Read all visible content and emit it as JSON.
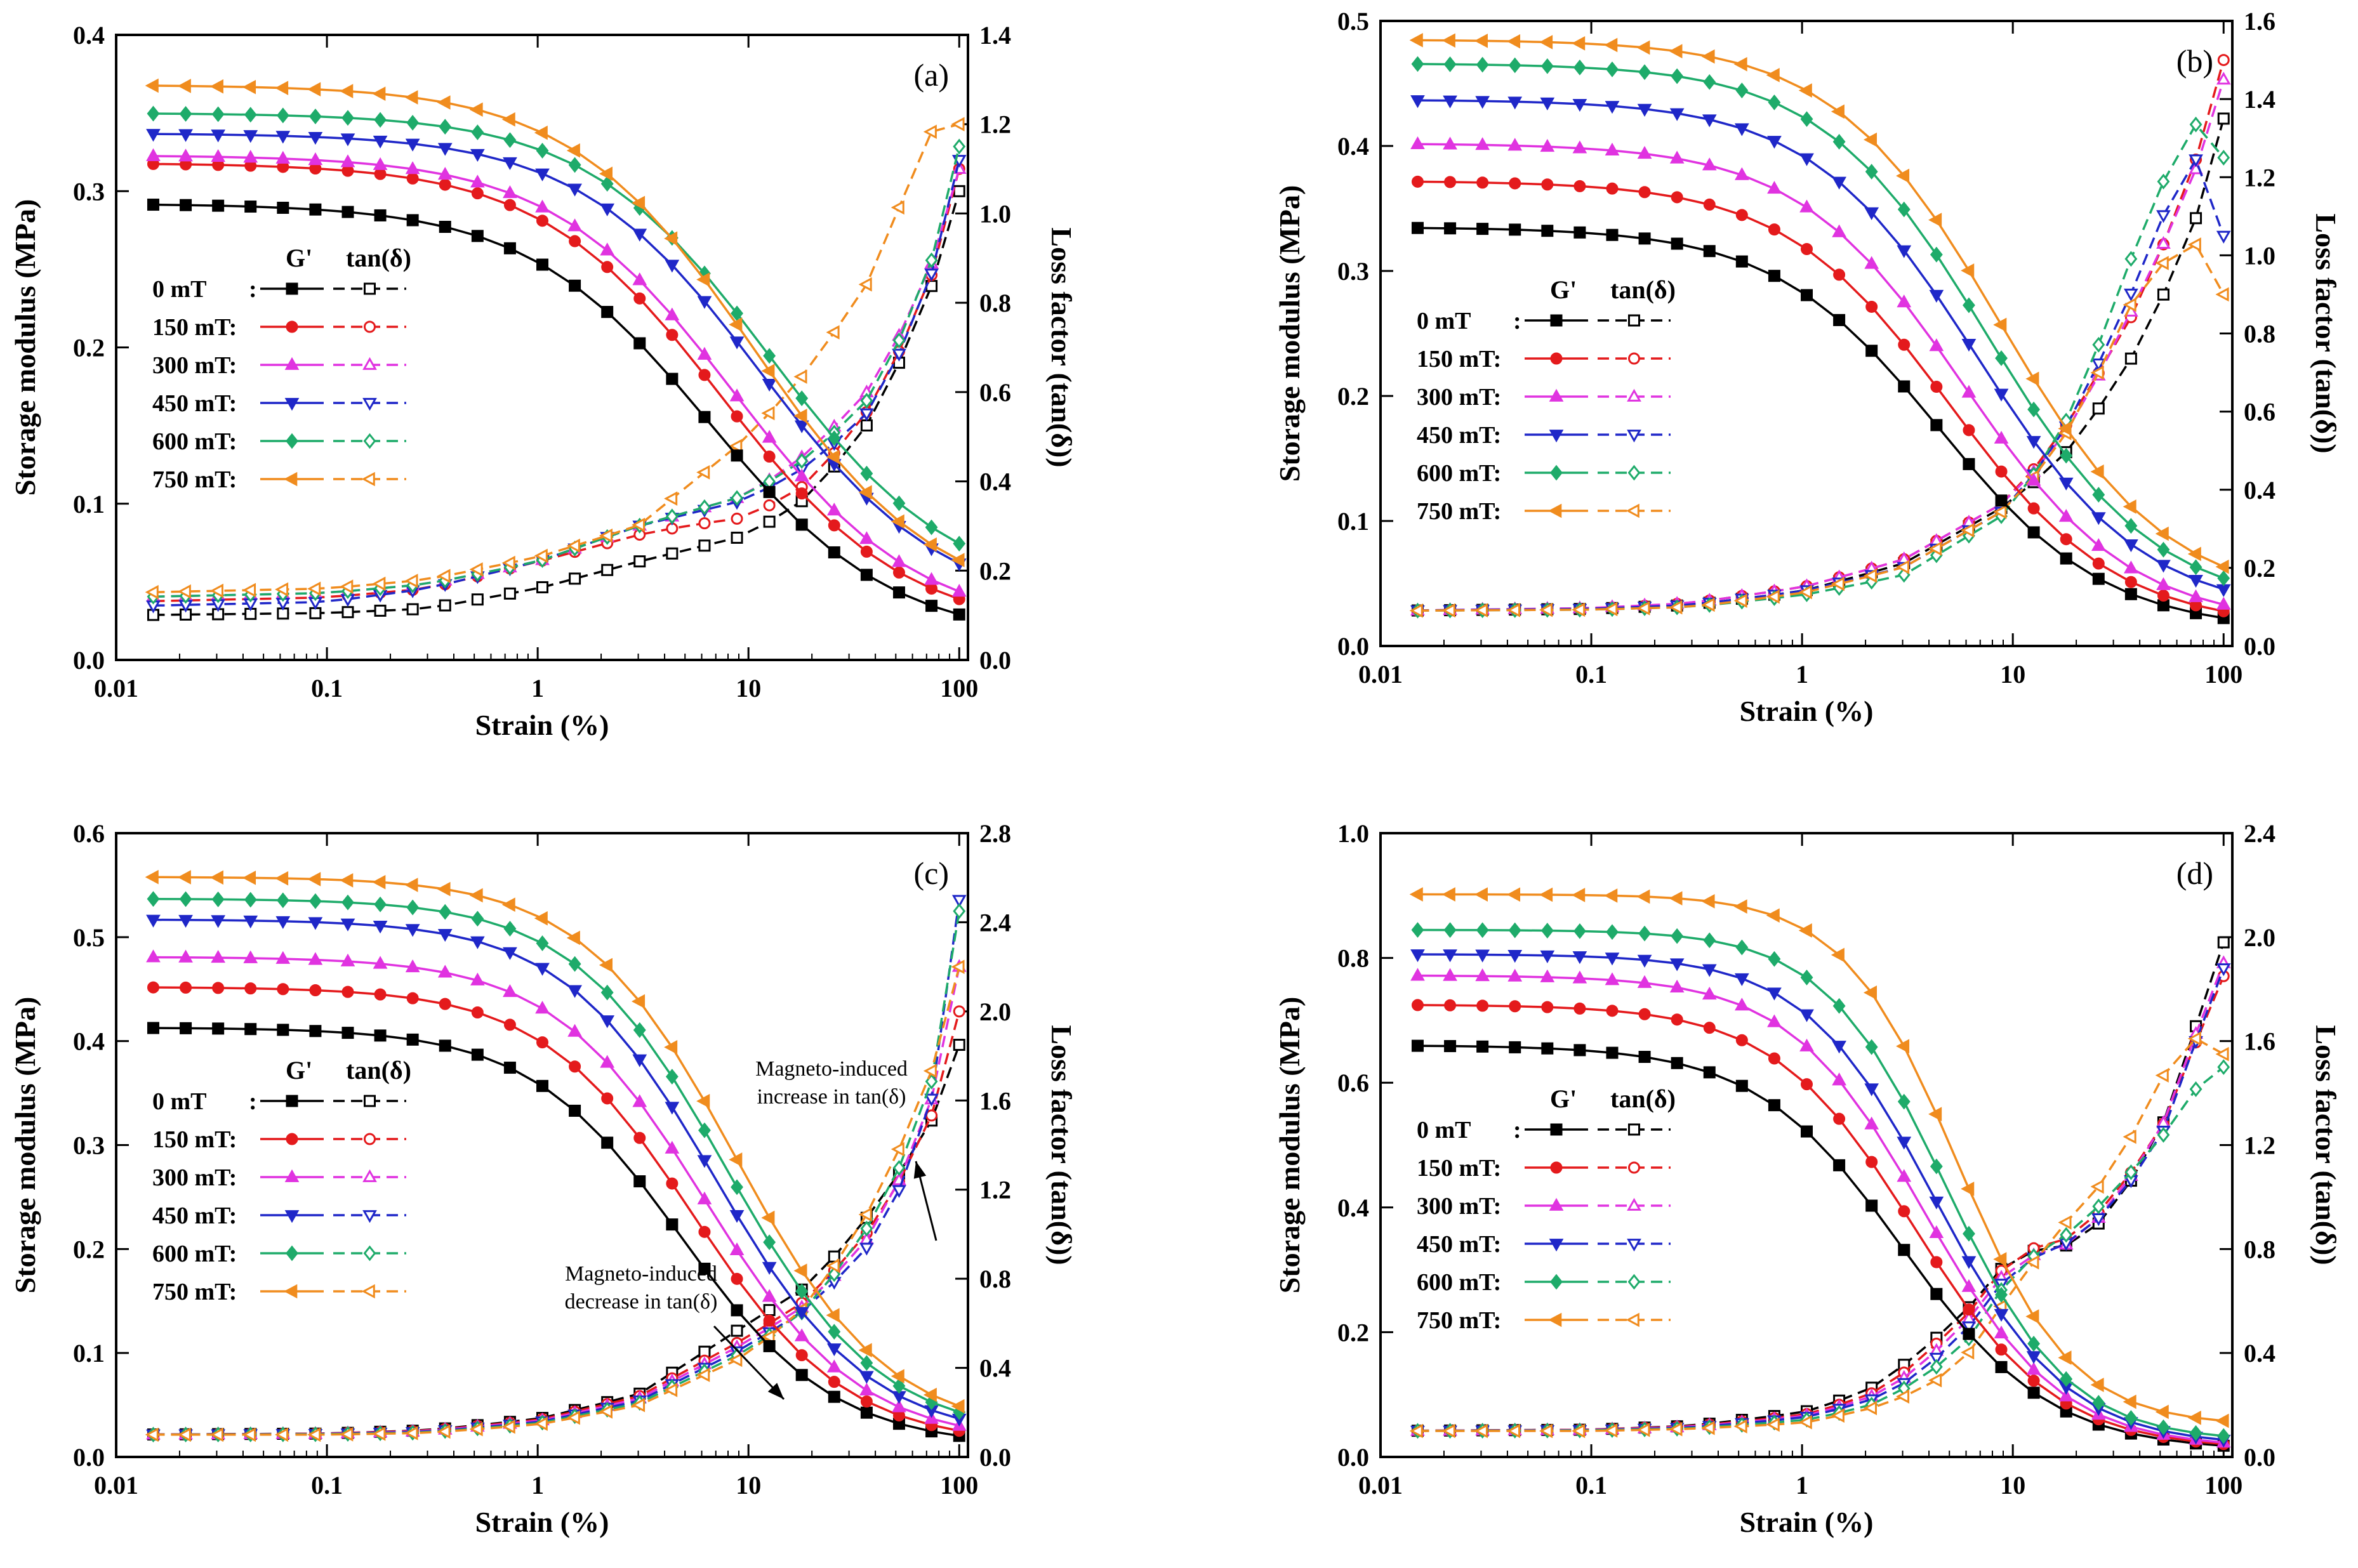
{
  "colors": {
    "0 mT": "#000000",
    "150 mT": "#e41a1c",
    "300 mT": "#e033e0",
    "450 mT": "#1f27c8",
    "600 mT": "#1eab6a",
    "750 mT": "#f08c1e"
  },
  "legend": {
    "header_gprime": "G'",
    "header_tan": "tan(δ)",
    "labels": [
      "0 mT",
      "150 mT:",
      "300 mT:",
      "450 mT:",
      "600 mT:",
      "750 mT:"
    ],
    "first_colon": ":"
  },
  "chart_data": [
    {
      "type": "line",
      "panel": "(a)",
      "xlabel": "Strain (%)",
      "ylabel": "Storage modulus  (MPa)",
      "y2label": "Loss factor (tan(δ))",
      "xscale": "log",
      "xlim": [
        0.01,
        110
      ],
      "ylim": [
        0,
        0.4
      ],
      "y2lim": [
        0,
        1.4
      ],
      "xticks": [
        "0.01",
        "0.1",
        "1",
        "10",
        "100"
      ],
      "yticks": [
        "0.0",
        "0.1",
        "0.2",
        "0.3",
        "0.4"
      ],
      "y2ticks": [
        "0.0",
        "0.2",
        "0.4",
        "0.6",
        "0.8",
        "1.0",
        "1.2",
        "1.4"
      ],
      "gprime": [
        {
          "name": "0 mT",
          "plateau": 0.292,
          "final": 0.012,
          "mid": 6.5,
          "slope": 1.0
        },
        {
          "name": "150 mT",
          "plateau": 0.318,
          "final": 0.018,
          "mid": 7.5,
          "slope": 1.0
        },
        {
          "name": "300 mT",
          "plateau": 0.323,
          "final": 0.02,
          "mid": 8.5,
          "slope": 1.0
        },
        {
          "name": "450 mT",
          "plateau": 0.337,
          "final": 0.03,
          "mid": 11.5,
          "slope": 1.0
        },
        {
          "name": "600 mT",
          "plateau": 0.35,
          "final": 0.04,
          "mid": 12.5,
          "slope": 1.0
        },
        {
          "name": "750 mT",
          "plateau": 0.368,
          "final": 0.032,
          "mid": 10.5,
          "slope": 1.0
        }
      ],
      "tan": [
        {
          "name": "0 mT",
          "x": [
            0.01,
            0.1,
            0.3,
            1,
            3,
            10,
            20,
            40,
            70,
            100
          ],
          "y": [
            0.1,
            0.105,
            0.115,
            0.16,
            0.22,
            0.28,
            0.37,
            0.55,
            0.8,
            1.05
          ]
        },
        {
          "name": "150 mT",
          "x": [
            0.01,
            0.1,
            0.3,
            1,
            3,
            5,
            10,
            20,
            40,
            70,
            100
          ],
          "y": [
            0.13,
            0.14,
            0.16,
            0.22,
            0.28,
            0.3,
            0.32,
            0.4,
            0.58,
            0.82,
            1.1
          ]
        },
        {
          "name": "300 mT",
          "x": [
            0.01,
            0.1,
            0.3,
            1,
            3,
            10,
            20,
            40,
            70,
            100
          ],
          "y": [
            0.14,
            0.15,
            0.17,
            0.22,
            0.3,
            0.37,
            0.47,
            0.62,
            0.85,
            1.1
          ]
        },
        {
          "name": "450 mT",
          "x": [
            0.01,
            0.1,
            0.3,
            1,
            3,
            10,
            20,
            40,
            70,
            100
          ],
          "y": [
            0.12,
            0.13,
            0.16,
            0.22,
            0.3,
            0.36,
            0.44,
            0.57,
            0.82,
            1.12
          ]
        },
        {
          "name": "600 mT",
          "x": [
            0.01,
            0.1,
            0.3,
            1,
            3,
            10,
            20,
            40,
            70,
            100
          ],
          "y": [
            0.14,
            0.15,
            0.17,
            0.22,
            0.3,
            0.37,
            0.46,
            0.6,
            0.85,
            1.15
          ]
        },
        {
          "name": "750 mT",
          "x": [
            0.01,
            0.1,
            0.3,
            1,
            3,
            10,
            20,
            40,
            70,
            100
          ],
          "y": [
            0.15,
            0.16,
            0.18,
            0.23,
            0.3,
            0.5,
            0.66,
            0.87,
            1.18,
            1.2
          ]
        }
      ],
      "annotations": []
    },
    {
      "type": "line",
      "panel": "(b)",
      "xlabel": "Strain (%)",
      "ylabel": "Storage modulus  (MPa)",
      "y2label": "Loss factor (tan(δ))",
      "xscale": "log",
      "xlim": [
        0.01,
        110
      ],
      "ylim": [
        0,
        0.5
      ],
      "y2lim": [
        0,
        1.6
      ],
      "xticks": [
        "0.01",
        "0.1",
        "1",
        "10",
        "100"
      ],
      "yticks": [
        "0.0",
        "0.1",
        "0.2",
        "0.3",
        "0.4",
        "0.5"
      ],
      "y2ticks": [
        "0.0",
        "0.2",
        "0.4",
        "0.6",
        "0.8",
        "1.0",
        "1.2",
        "1.4",
        "1.6"
      ],
      "gprime": [
        {
          "name": "0 mT",
          "plateau": 0.335,
          "final": 0.012,
          "mid": 4.5,
          "slope": 1.1
        },
        {
          "name": "150 mT",
          "plateau": 0.372,
          "final": 0.015,
          "mid": 5.0,
          "slope": 1.1
        },
        {
          "name": "300 mT",
          "plateau": 0.402,
          "final": 0.017,
          "mid": 5.8,
          "slope": 1.1
        },
        {
          "name": "450 mT",
          "plateau": 0.437,
          "final": 0.025,
          "mid": 6.8,
          "slope": 1.1
        },
        {
          "name": "600 mT",
          "plateau": 0.466,
          "final": 0.03,
          "mid": 7.6,
          "slope": 1.1
        },
        {
          "name": "750 mT",
          "plateau": 0.485,
          "final": 0.035,
          "mid": 8.6,
          "slope": 1.1
        }
      ],
      "tan": [
        {
          "name": "0 mT",
          "x": [
            0.01,
            0.1,
            0.3,
            1,
            3,
            10,
            20,
            40,
            70,
            100
          ],
          "y": [
            0.09,
            0.095,
            0.105,
            0.14,
            0.21,
            0.37,
            0.52,
            0.77,
            1.05,
            1.35
          ]
        },
        {
          "name": "150 mT",
          "x": [
            0.01,
            0.1,
            0.3,
            1,
            3,
            10,
            20,
            40,
            70,
            100
          ],
          "y": [
            0.09,
            0.095,
            0.11,
            0.15,
            0.22,
            0.38,
            0.6,
            0.88,
            1.2,
            1.5
          ]
        },
        {
          "name": "300 mT",
          "x": [
            0.01,
            0.1,
            0.3,
            1,
            3,
            10,
            20,
            40,
            70,
            100
          ],
          "y": [
            0.09,
            0.097,
            0.11,
            0.15,
            0.22,
            0.38,
            0.58,
            0.9,
            1.18,
            1.45
          ]
        },
        {
          "name": "450 mT",
          "x": [
            0.01,
            0.1,
            0.3,
            1,
            3,
            10,
            20,
            40,
            70,
            100
          ],
          "y": [
            0.09,
            0.095,
            0.105,
            0.14,
            0.2,
            0.36,
            0.6,
            0.95,
            1.28,
            1.05
          ]
        },
        {
          "name": "600 mT",
          "x": [
            0.01,
            0.1,
            0.3,
            1,
            3,
            10,
            20,
            40,
            70,
            100
          ],
          "y": [
            0.09,
            0.093,
            0.1,
            0.13,
            0.18,
            0.35,
            0.62,
            1.05,
            1.35,
            1.25
          ]
        },
        {
          "name": "750 mT",
          "x": [
            0.01,
            0.1,
            0.3,
            1,
            3,
            10,
            20,
            40,
            70,
            100
          ],
          "y": [
            0.09,
            0.093,
            0.1,
            0.135,
            0.2,
            0.36,
            0.58,
            0.92,
            1.05,
            0.9
          ]
        }
      ],
      "annotations": []
    },
    {
      "type": "line",
      "panel": "(c)",
      "xlabel": "Strain (%)",
      "ylabel": "Storage modulus  (MPa)",
      "y2label": "Loss factor (tan(δ))",
      "xscale": "log",
      "xlim": [
        0.01,
        110
      ],
      "ylim": [
        0,
        0.6
      ],
      "y2lim": [
        0,
        2.8
      ],
      "xticks": [
        "0.01",
        "0.1",
        "1",
        "10",
        "100"
      ],
      "yticks": [
        "0.0",
        "0.1",
        "0.2",
        "0.3",
        "0.4",
        "0.5",
        "0.6"
      ],
      "y2ticks": [
        "0.0",
        "0.4",
        "0.8",
        "1.2",
        "1.6",
        "2.0",
        "2.4",
        "2.8"
      ],
      "gprime": [
        {
          "name": "0 mT",
          "plateau": 0.413,
          "final": 0.01,
          "mid": 4.8,
          "slope": 1.2
        },
        {
          "name": "150 mT",
          "plateau": 0.452,
          "final": 0.012,
          "mid": 5.5,
          "slope": 1.2
        },
        {
          "name": "300 mT",
          "plateau": 0.481,
          "final": 0.014,
          "mid": 6.2,
          "slope": 1.2
        },
        {
          "name": "450 mT",
          "plateau": 0.517,
          "final": 0.017,
          "mid": 7.0,
          "slope": 1.2
        },
        {
          "name": "600 mT",
          "plateau": 0.537,
          "final": 0.02,
          "mid": 7.8,
          "slope": 1.2
        },
        {
          "name": "750 mT",
          "plateau": 0.558,
          "final": 0.022,
          "mid": 8.6,
          "slope": 1.2
        }
      ],
      "tan": [
        {
          "name": "0 mT",
          "x": [
            0.01,
            0.1,
            0.3,
            1,
            3,
            10,
            20,
            40,
            70,
            100
          ],
          "y": [
            0.1,
            0.105,
            0.12,
            0.17,
            0.28,
            0.6,
            0.78,
            1.12,
            1.45,
            1.85
          ]
        },
        {
          "name": "150 mT",
          "x": [
            0.01,
            0.1,
            0.3,
            1,
            3,
            10,
            20,
            40,
            70,
            100
          ],
          "y": [
            0.1,
            0.105,
            0.118,
            0.165,
            0.27,
            0.54,
            0.72,
            1.05,
            1.45,
            2.0
          ]
        },
        {
          "name": "300 mT",
          "x": [
            0.01,
            0.1,
            0.3,
            1,
            3,
            10,
            20,
            40,
            70,
            100
          ],
          "y": [
            0.1,
            0.104,
            0.116,
            0.16,
            0.26,
            0.52,
            0.7,
            1.02,
            1.5,
            2.2
          ]
        },
        {
          "name": "450 mT",
          "x": [
            0.01,
            0.1,
            0.3,
            1,
            3,
            10,
            20,
            40,
            70,
            100
          ],
          "y": [
            0.1,
            0.103,
            0.113,
            0.155,
            0.25,
            0.5,
            0.68,
            0.98,
            1.45,
            2.5
          ]
        },
        {
          "name": "600 mT",
          "x": [
            0.01,
            0.1,
            0.3,
            1,
            3,
            10,
            20,
            40,
            70,
            100
          ],
          "y": [
            0.1,
            0.102,
            0.11,
            0.15,
            0.24,
            0.48,
            0.68,
            1.08,
            1.55,
            2.45
          ]
        },
        {
          "name": "750 mT",
          "x": [
            0.01,
            0.1,
            0.3,
            1,
            3,
            10,
            20,
            40,
            70,
            100
          ],
          "y": [
            0.1,
            0.1,
            0.108,
            0.145,
            0.23,
            0.46,
            0.7,
            1.15,
            1.65,
            2.2
          ]
        }
      ],
      "annotations": [
        {
          "id": "increase",
          "lines": [
            "Magneto-induced",
            "increase in tan(δ)"
          ]
        },
        {
          "id": "decrease",
          "lines": [
            "Magneto-induced",
            "decrease in tan(δ)"
          ]
        }
      ]
    },
    {
      "type": "line",
      "panel": "(d)",
      "xlabel": "Strain (%)",
      "ylabel": "Storage modulus  (MPa)",
      "y2label": "Loss factor (tan(δ))",
      "xscale": "log",
      "xlim": [
        0.01,
        110
      ],
      "ylim": [
        0,
        1.0
      ],
      "y2lim": [
        0,
        2.4
      ],
      "xticks": [
        "0.01",
        "0.1",
        "1",
        "10",
        "100"
      ],
      "yticks": [
        "0.0",
        "0.2",
        "0.4",
        "0.6",
        "0.8",
        "1.0"
      ],
      "y2ticks": [
        "0.0",
        "0.4",
        "0.8",
        "1.2",
        "1.6",
        "2.0",
        "2.4"
      ],
      "gprime": [
        {
          "name": "0 mT",
          "plateau": 0.66,
          "final": 0.01,
          "mid": 3.0,
          "slope": 1.25
        },
        {
          "name": "150 mT",
          "plateau": 0.725,
          "final": 0.012,
          "mid": 3.4,
          "slope": 1.3
        },
        {
          "name": "300 mT",
          "plateau": 0.772,
          "final": 0.014,
          "mid": 3.8,
          "slope": 1.35
        },
        {
          "name": "450 mT",
          "plateau": 0.806,
          "final": 0.018,
          "mid": 4.3,
          "slope": 1.4
        },
        {
          "name": "600 mT",
          "plateau": 0.845,
          "final": 0.025,
          "mid": 4.8,
          "slope": 1.5
        },
        {
          "name": "750 mT",
          "plateau": 0.902,
          "final": 0.05,
          "mid": 5.4,
          "slope": 1.6
        }
      ],
      "tan": [
        {
          "name": "0 mT",
          "x": [
            0.01,
            0.1,
            0.3,
            1,
            2,
            3,
            5,
            7,
            10,
            20,
            30,
            50,
            70,
            100
          ],
          "y": [
            0.1,
            0.105,
            0.12,
            0.17,
            0.25,
            0.35,
            0.5,
            0.62,
            0.78,
            0.82,
            0.95,
            1.25,
            1.6,
            1.98
          ]
        },
        {
          "name": "150 mT",
          "x": [
            0.01,
            0.1,
            0.3,
            1,
            2,
            3,
            5,
            7,
            10,
            20,
            30,
            50,
            70,
            100
          ],
          "y": [
            0.1,
            0.105,
            0.118,
            0.16,
            0.23,
            0.32,
            0.48,
            0.6,
            0.78,
            0.85,
            1.0,
            1.25,
            1.55,
            1.85
          ]
        },
        {
          "name": "300 mT",
          "x": [
            0.01,
            0.1,
            0.3,
            1,
            2,
            3,
            5,
            7,
            10,
            20,
            30,
            50,
            70,
            100
          ],
          "y": [
            0.1,
            0.104,
            0.116,
            0.155,
            0.22,
            0.3,
            0.45,
            0.58,
            0.75,
            0.83,
            0.98,
            1.25,
            1.58,
            1.9
          ]
        },
        {
          "name": "450 mT",
          "x": [
            0.01,
            0.1,
            0.3,
            1,
            2,
            3,
            5,
            7,
            10,
            20,
            30,
            50,
            70,
            100
          ],
          "y": [
            0.1,
            0.103,
            0.113,
            0.15,
            0.21,
            0.28,
            0.42,
            0.55,
            0.73,
            0.84,
            0.97,
            1.22,
            1.55,
            1.88
          ]
        },
        {
          "name": "600 mT",
          "x": [
            0.01,
            0.1,
            0.3,
            1,
            2,
            3,
            5,
            7,
            10,
            20,
            30,
            50,
            70,
            100
          ],
          "y": [
            0.1,
            0.102,
            0.11,
            0.14,
            0.19,
            0.26,
            0.38,
            0.5,
            0.72,
            0.88,
            1.02,
            1.22,
            1.4,
            1.5
          ]
        },
        {
          "name": "750 mT",
          "x": [
            0.01,
            0.1,
            0.3,
            1,
            2,
            3,
            5,
            7,
            10,
            20,
            30,
            50,
            70,
            100
          ],
          "y": [
            0.1,
            0.1,
            0.108,
            0.13,
            0.18,
            0.23,
            0.32,
            0.45,
            0.65,
            0.95,
            1.1,
            1.45,
            1.62,
            1.55
          ]
        }
      ],
      "annotations": []
    }
  ]
}
